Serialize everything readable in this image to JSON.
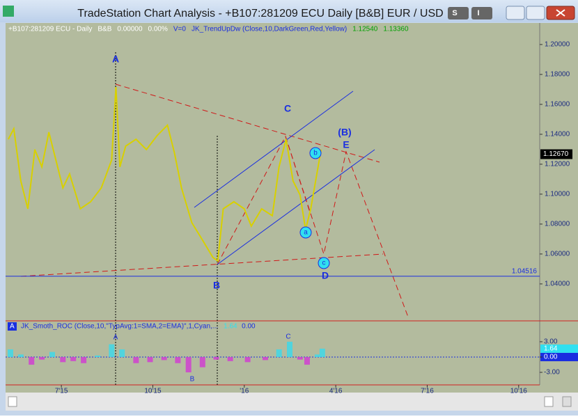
{
  "window": {
    "title": "TradeStation Chart Analysis - +B107:281209 ECU Daily [B&B] EUR / USD",
    "buttons": [
      "S",
      "I"
    ]
  },
  "chart_data": {
    "type": "line",
    "header": [
      "+B107:281209 ECU - Daily",
      "B&B",
      "0.00000",
      "0.00%",
      "V=0",
      "JK_TrendUpDw (Close,10,DarkGreen,Red,Yellow)",
      "1.12540",
      "1.13360"
    ],
    "x": [
      4.26,
      4.44,
      4.67,
      4.9,
      5.13,
      5.36,
      5.59,
      5.82,
      6.05,
      6.27,
      6.62,
      6.96,
      7.31,
      7.65,
      7.79,
      7.92,
      8.11,
      8.45,
      8.79,
      9.14,
      9.48,
      9.71,
      9.94,
      10.28,
      10.63,
      10.97,
      11.13,
      11.31,
      11.66,
      12.0,
      12.23,
      12.57,
      12.92,
      13.14,
      13.37,
      13.6,
      13.83,
      14.01,
      14.18,
      14.34,
      14.52
    ],
    "values": [
      1.1367,
      1.1437,
      1.1088,
      1.0902,
      1.1298,
      1.1182,
      1.1414,
      1.1228,
      1.1042,
      1.1135,
      1.0902,
      1.0949,
      1.1042,
      1.1228,
      1.1716,
      1.1182,
      1.1321,
      1.1367,
      1.1298,
      1.1391,
      1.1461,
      1.1275,
      1.1042,
      1.0809,
      1.0693,
      1.0577,
      1.0554,
      1.0902,
      1.0949,
      1.0902,
      1.0786,
      1.0902,
      1.0856,
      1.1182,
      1.1367,
      1.1088,
      1.0995,
      1.0763,
      1.0902,
      1.1088,
      1.1298
    ],
    "color": "#d8d000",
    "xlim": [
      4.17,
      21.69
    ],
    "xticks": [
      {
        "value": 6,
        "label": "7'15"
      },
      {
        "value": 9,
        "label": "10'15"
      },
      {
        "value": 12,
        "label": "'16"
      },
      {
        "value": 15,
        "label": "4'16"
      },
      {
        "value": 18,
        "label": "7'16"
      },
      {
        "value": 21,
        "label": "10'16"
      }
    ],
    "ylim": [
      1.0167,
      1.213
    ],
    "yticks": [
      {
        "value": 1.04,
        "label": "1.04000"
      },
      {
        "value": 1.06,
        "label": "1.06000"
      },
      {
        "value": 1.08,
        "label": "1.08000"
      },
      {
        "value": 1.1,
        "label": "1.10000"
      },
      {
        "value": 1.12,
        "label": "1.12000"
      },
      {
        "value": 1.14,
        "label": "1.14000"
      },
      {
        "value": 1.16,
        "label": "1.16000"
      },
      {
        "value": 1.18,
        "label": "1.18000"
      },
      {
        "value": 1.2,
        "label": "1.20000"
      }
    ],
    "current": {
      "value": 1.1267,
      "label": "1.12670"
    },
    "support": 1.04516,
    "annotations": [
      "A",
      "C",
      "(B)",
      "E",
      "B",
      "D",
      "b",
      "a",
      "c"
    ]
  },
  "indicator": {
    "name": "JK_Smoth_ROC (Close,10,\"TypAvg:1=SMA,2=EMA)\",1,Cyan,...",
    "current": 1.64,
    "zero_text": "0.00",
    "pane_label": "A",
    "x": [
      4.33,
      4.67,
      5.02,
      5.36,
      5.7,
      6.05,
      6.39,
      6.73,
      7.19,
      7.65,
      7.99,
      8.45,
      8.91,
      9.37,
      9.82,
      10.17,
      10.63,
      11.08,
      11.54,
      12.11,
      12.69,
      13.14,
      13.49,
      13.83,
      14.06,
      14.4,
      14.56
    ],
    "values": [
      1.5,
      0.5,
      -1.5,
      -0.5,
      1.0,
      -1.0,
      -0.8,
      -1.2,
      0.3,
      2.5,
      1.5,
      -1.2,
      -1.0,
      -0.6,
      -1.2,
      -3.0,
      -2.0,
      -0.5,
      -0.8,
      -1.0,
      -0.6,
      1.5,
      3.0,
      -0.5,
      -1.5,
      0.5,
      1.64
    ],
    "ylim": [
      -5.46,
      5.18
    ],
    "yticks": [
      {
        "value": 3,
        "label": "3.00"
      },
      {
        "value": 0,
        "label": "0.00"
      },
      {
        "value": -3,
        "label": "-3.00"
      }
    ],
    "annotations": [
      "A",
      "B",
      "C"
    ]
  }
}
